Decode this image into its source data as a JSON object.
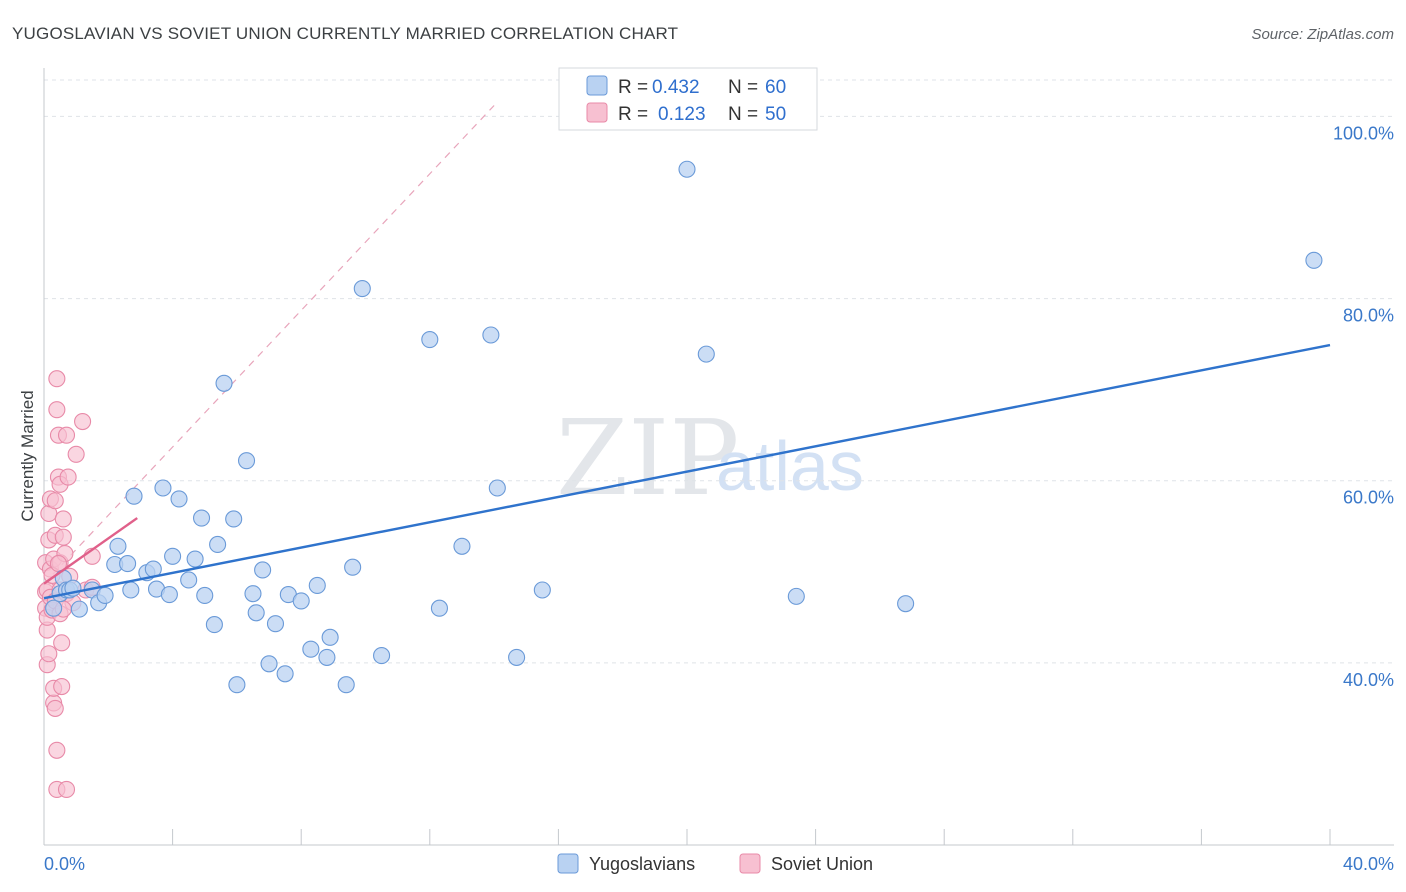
{
  "colors": {
    "blue": "#3a78c9",
    "blue_fill": "#b9d2f2",
    "blue_stroke": "#6a9ad8",
    "blue_line": "#2f73cc",
    "pink_fill": "#f7c0d1",
    "pink_stroke": "#e88aa8",
    "pink_line": "#e0608a",
    "grid": "#dfe3e8"
  },
  "watermark": {
    "zip": "ZIP",
    "atlas": "atlas"
  },
  "chart_data": {
    "type": "scatter",
    "title": "YUGOSLAVIAN VS SOVIET UNION CURRENTLY MARRIED CORRELATION CHART",
    "source": "Source: ZipAtlas.com",
    "xlabel": "",
    "ylabel": "Currently Married",
    "xlim": [
      0,
      40
    ],
    "ylim": [
      20,
      104
    ],
    "x_tick_labels": [
      {
        "value": 0,
        "label": "0.0%"
      },
      {
        "value": 40,
        "label": "40.0%"
      }
    ],
    "y_tick_labels": [
      {
        "value": 40,
        "label": "40.0%"
      },
      {
        "value": 60,
        "label": "60.0%"
      },
      {
        "value": 80,
        "label": "80.0%"
      },
      {
        "value": 100,
        "label": "100.0%"
      }
    ],
    "legend": [
      {
        "name": "Yugoslavians",
        "r_label": "R =",
        "r_value": "0.432",
        "n_label": "N =",
        "n_value": "60"
      },
      {
        "name": "Soviet Union",
        "r_label": "R =",
        "r_value": "0.123",
        "n_label": "N =",
        "n_value": "50"
      }
    ],
    "series": [
      {
        "name": "Yugoslavians",
        "trend": {
          "x0": 0.0,
          "y0": 47.1,
          "x1": 40.0,
          "y1": 74.9
        },
        "points": [
          [
            0.3,
            46.0
          ],
          [
            0.5,
            47.6
          ],
          [
            0.6,
            49.3
          ],
          [
            0.7,
            48.0
          ],
          [
            0.8,
            48.0
          ],
          [
            0.9,
            48.2
          ],
          [
            1.1,
            45.9
          ],
          [
            1.5,
            48.0
          ],
          [
            1.7,
            46.6
          ],
          [
            1.9,
            47.4
          ],
          [
            2.2,
            50.8
          ],
          [
            2.3,
            52.8
          ],
          [
            2.6,
            50.9
          ],
          [
            2.7,
            48.0
          ],
          [
            2.8,
            58.3
          ],
          [
            3.2,
            49.9
          ],
          [
            3.4,
            50.3
          ],
          [
            3.5,
            48.1
          ],
          [
            3.7,
            59.2
          ],
          [
            3.9,
            47.5
          ],
          [
            4.0,
            51.7
          ],
          [
            4.2,
            58.0
          ],
          [
            4.5,
            49.1
          ],
          [
            4.7,
            51.4
          ],
          [
            4.9,
            55.9
          ],
          [
            5.0,
            47.4
          ],
          [
            5.3,
            44.2
          ],
          [
            5.4,
            53.0
          ],
          [
            5.6,
            70.7
          ],
          [
            5.9,
            55.8
          ],
          [
            6.0,
            37.6
          ],
          [
            6.3,
            62.2
          ],
          [
            6.5,
            47.6
          ],
          [
            6.6,
            45.5
          ],
          [
            6.8,
            50.2
          ],
          [
            7.0,
            39.9
          ],
          [
            7.2,
            44.3
          ],
          [
            7.5,
            38.8
          ],
          [
            7.6,
            47.5
          ],
          [
            8.0,
            46.8
          ],
          [
            8.3,
            41.5
          ],
          [
            8.5,
            48.5
          ],
          [
            8.8,
            40.6
          ],
          [
            8.9,
            42.8
          ],
          [
            9.4,
            37.6
          ],
          [
            9.6,
            50.5
          ],
          [
            9.9,
            81.1
          ],
          [
            10.5,
            40.8
          ],
          [
            12.0,
            75.5
          ],
          [
            12.3,
            46.0
          ],
          [
            13.0,
            52.8
          ],
          [
            13.9,
            76.0
          ],
          [
            14.1,
            59.2
          ],
          [
            14.7,
            40.6
          ],
          [
            15.5,
            48.0
          ],
          [
            20.0,
            94.2
          ],
          [
            20.6,
            73.9
          ],
          [
            23.4,
            47.3
          ],
          [
            26.8,
            46.5
          ],
          [
            39.5,
            84.2
          ]
        ]
      },
      {
        "name": "Soviet Union",
        "trend": {
          "x0": 0.0,
          "y0": 48.7,
          "x1": 2.9,
          "y1": 55.9
        },
        "ext": {
          "x0": 0.0,
          "y0": 48.7,
          "x1": 14.0,
          "y1": 101.2
        },
        "points": [
          [
            0.05,
            46.0
          ],
          [
            0.05,
            47.8
          ],
          [
            0.05,
            51.0
          ],
          [
            0.1,
            43.6
          ],
          [
            0.1,
            39.8
          ],
          [
            0.1,
            45.0
          ],
          [
            0.1,
            48.0
          ],
          [
            0.15,
            53.5
          ],
          [
            0.15,
            56.4
          ],
          [
            0.2,
            50.3
          ],
          [
            0.2,
            47.2
          ],
          [
            0.2,
            58.0
          ],
          [
            0.25,
            45.8
          ],
          [
            0.3,
            35.6
          ],
          [
            0.3,
            37.2
          ],
          [
            0.3,
            51.4
          ],
          [
            0.35,
            46.8
          ],
          [
            0.35,
            54.0
          ],
          [
            0.35,
            57.8
          ],
          [
            0.4,
            30.4
          ],
          [
            0.4,
            26.1
          ],
          [
            0.4,
            71.2
          ],
          [
            0.4,
            67.8
          ],
          [
            0.45,
            65.0
          ],
          [
            0.45,
            60.4
          ],
          [
            0.5,
            59.6
          ],
          [
            0.5,
            51.0
          ],
          [
            0.5,
            48.0
          ],
          [
            0.5,
            45.4
          ],
          [
            0.55,
            42.2
          ],
          [
            0.55,
            37.4
          ],
          [
            0.6,
            55.8
          ],
          [
            0.6,
            53.8
          ],
          [
            0.65,
            52.0
          ],
          [
            0.7,
            26.1
          ],
          [
            0.7,
            47.6
          ],
          [
            0.7,
            65.0
          ],
          [
            0.75,
            60.4
          ],
          [
            0.8,
            49.5
          ],
          [
            0.9,
            46.6
          ],
          [
            1.0,
            62.9
          ],
          [
            1.2,
            66.5
          ],
          [
            1.3,
            48.0
          ],
          [
            1.5,
            48.3
          ],
          [
            1.5,
            51.7
          ],
          [
            0.35,
            35.0
          ],
          [
            0.25,
            49.6
          ],
          [
            0.15,
            41.0
          ],
          [
            0.6,
            45.9
          ],
          [
            0.45,
            50.9
          ]
        ]
      }
    ]
  }
}
